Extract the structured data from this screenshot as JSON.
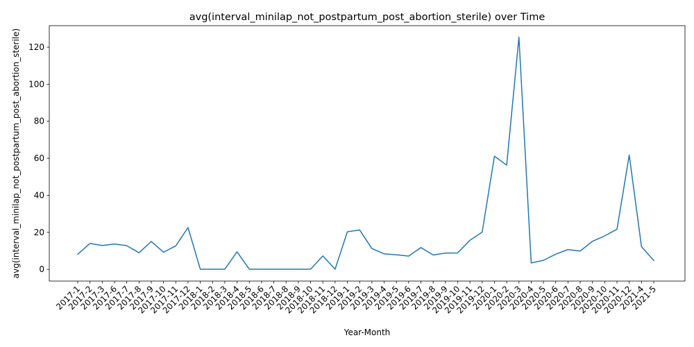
{
  "chart_data": {
    "type": "line",
    "title": "avg(interval_minilap_not_postpartum_post_abortion_sterile) over Time",
    "xlabel": "Year-Month",
    "ylabel": "avg(interval_minilap_not_postpartum_post_abortion_sterile)",
    "ylim": [
      -6.3,
      131.6
    ],
    "yticks": [
      0,
      20,
      40,
      60,
      80,
      100,
      120
    ],
    "grid": false,
    "line_color": "#1f77b4",
    "categories": [
      "2017-1",
      "2017-2",
      "2017-3",
      "2017-6",
      "2017-7",
      "2017-8",
      "2017-9",
      "2017-10",
      "2017-11",
      "2017-12",
      "2018-1",
      "2018-2",
      "2018-3",
      "2018-4",
      "2018-5",
      "2018-6",
      "2018-7",
      "2018-8",
      "2018-9",
      "2018-10",
      "2018-11",
      "2018-12",
      "2019-1",
      "2019-2",
      "2019-3",
      "2019-4",
      "2019-5",
      "2019-6",
      "2019-7",
      "2019-8",
      "2019-9",
      "2019-10",
      "2019-11",
      "2019-12",
      "2020-1",
      "2020-2",
      "2020-3",
      "2020-4",
      "2020-5",
      "2020-6",
      "2020-7",
      "2020-8",
      "2020-9",
      "2020-10",
      "2020-11",
      "2020-12",
      "2021-4",
      "2021-5"
    ],
    "values": [
      8.2,
      14.0,
      12.9,
      13.7,
      12.8,
      9.0,
      15.1,
      9.3,
      12.7,
      22.6,
      0.1,
      0.1,
      0.1,
      9.5,
      0.1,
      0.1,
      0.1,
      0.1,
      0.1,
      0.1,
      7.3,
      0.1,
      20.3,
      21.3,
      11.3,
      8.4,
      7.9,
      7.2,
      11.8,
      7.8,
      8.8,
      8.9,
      15.7,
      20.1,
      61.1,
      56.3,
      125.4,
      3.5,
      4.9,
      8.2,
      10.7,
      9.9,
      15.2,
      18.1,
      21.7,
      61.7,
      12.3,
      4.8
    ]
  }
}
